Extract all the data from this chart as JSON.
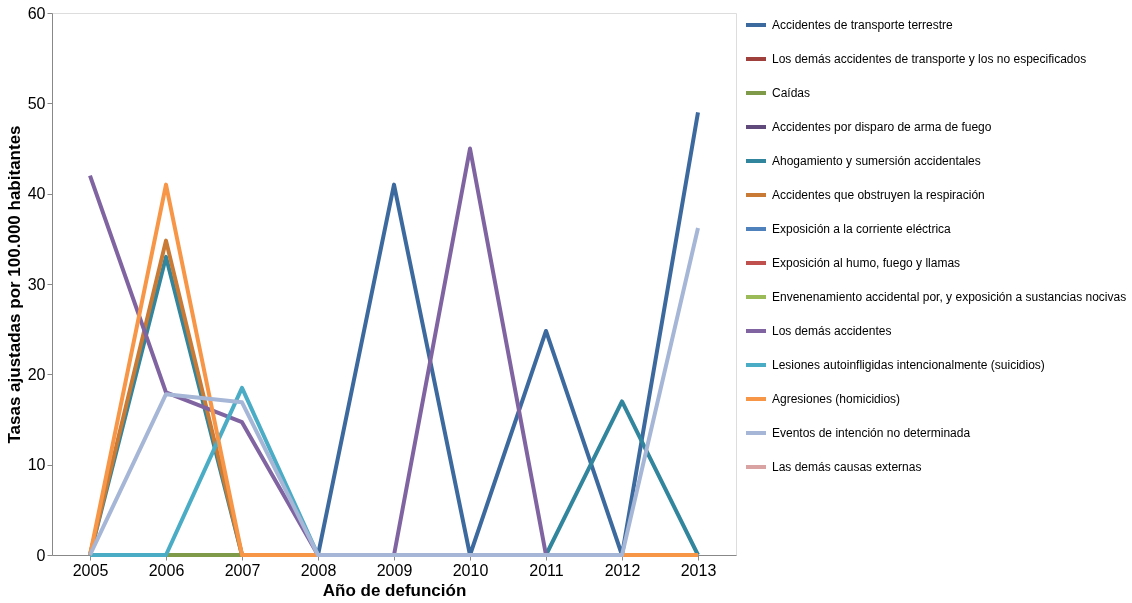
{
  "chart_data": {
    "type": "line",
    "xlabel": "Año de defunción",
    "ylabel": "Tasas ajustadas por 100.000 habitantes",
    "categories": [
      "2005",
      "2006",
      "2007",
      "2008",
      "2009",
      "2010",
      "2011",
      "2012",
      "2013"
    ],
    "ylim": [
      0,
      60
    ],
    "yticks": [
      0,
      10,
      20,
      30,
      40,
      50,
      60
    ],
    "grid": false,
    "legend": "right",
    "marker": "none",
    "line_style": "solid",
    "series": [
      {
        "name": "Accidentes de transporte terrestre",
        "color": "#3d6a9e",
        "values": [
          null,
          null,
          null,
          0,
          41,
          0,
          24.8,
          0,
          49
        ]
      },
      {
        "name": "Los demás accidentes de transporte y los no especificados",
        "color": "#a0403c",
        "values": [
          null,
          null,
          null,
          null,
          null,
          null,
          null,
          null,
          null
        ]
      },
      {
        "name": "Caídas",
        "color": "#7f9a48",
        "values": [
          null,
          0,
          0,
          null,
          null,
          null,
          null,
          null,
          null
        ]
      },
      {
        "name": "Accidentes por disparo de arma de fuego",
        "color": "#604a7b",
        "values": [
          null,
          null,
          null,
          null,
          null,
          null,
          null,
          null,
          null
        ]
      },
      {
        "name": "Ahogamiento y sumersión accidentales",
        "color": "#31859c",
        "values": [
          0,
          33,
          0,
          null,
          null,
          null,
          0,
          17,
          0
        ]
      },
      {
        "name": "Accidentes que obstruyen la respiración",
        "color": "#c97a35",
        "values": [
          0,
          34.8,
          0,
          null,
          null,
          null,
          null,
          null,
          null
        ]
      },
      {
        "name": "Exposición a la corriente eléctrica",
        "color": "#4f81bd",
        "values": [
          null,
          null,
          null,
          null,
          null,
          null,
          null,
          null,
          null
        ]
      },
      {
        "name": "Exposición al humo, fuego y llamas",
        "color": "#c0504d",
        "values": [
          null,
          null,
          null,
          null,
          null,
          null,
          null,
          null,
          null
        ]
      },
      {
        "name": "Envenenamiento accidental por, y exposición a sustancias nocivas",
        "color": "#9bbb59",
        "values": [
          null,
          null,
          null,
          null,
          null,
          null,
          null,
          null,
          null
        ]
      },
      {
        "name": "Los demás accidentes",
        "color": "#8064a2",
        "values": [
          42,
          18,
          14.7,
          0,
          0,
          45,
          0,
          null,
          null
        ]
      },
      {
        "name": "Lesiones autoinfligidas intencionalmente (suicidios)",
        "color": "#4bacc6",
        "values": [
          0,
          0,
          18.5,
          0,
          null,
          null,
          null,
          null,
          null
        ]
      },
      {
        "name": "Agresiones (homicidios)",
        "color": "#f79646",
        "values": [
          0,
          41,
          0,
          0,
          null,
          null,
          null,
          0,
          0
        ]
      },
      {
        "name": "Eventos de intención no determinada",
        "color": "#a5b6d6",
        "values": [
          0,
          17.8,
          16.9,
          0,
          0,
          0,
          0,
          0,
          36.2
        ]
      },
      {
        "name": "Las demás causas externas",
        "color": "#d9a3a3",
        "values": [
          null,
          null,
          null,
          null,
          null,
          null,
          null,
          null,
          null
        ]
      }
    ]
  }
}
